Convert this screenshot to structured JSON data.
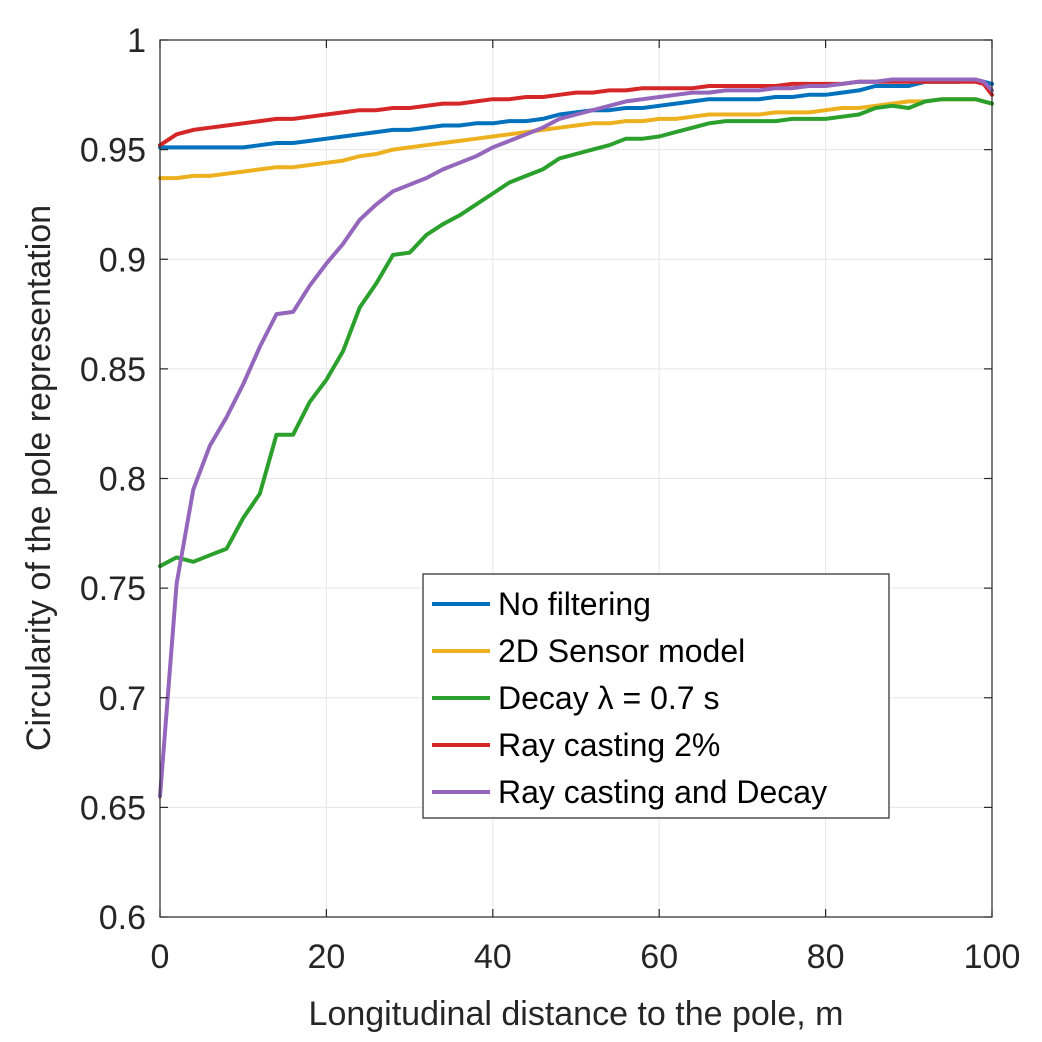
{
  "chart_data": {
    "type": "line",
    "title": "",
    "xlabel": "Longitudinal distance to the pole, m",
    "ylabel": "Circularity of the pole representation",
    "xlim": [
      0,
      100
    ],
    "ylim": [
      0.6,
      1
    ],
    "xticks": [
      0,
      20,
      40,
      60,
      80,
      100
    ],
    "xtick_labels": [
      "0",
      "20",
      "40",
      "60",
      "80",
      "100"
    ],
    "yticks": [
      0.6,
      0.65,
      0.7,
      0.75,
      0.8,
      0.85,
      0.9,
      0.95,
      1
    ],
    "ytick_labels": [
      "0.6",
      "0.65",
      "0.7",
      "0.75",
      "0.8",
      "0.85",
      "0.9",
      "0.95",
      "1"
    ],
    "grid": true,
    "legend_position": "lower-right",
    "x": [
      0,
      2,
      4,
      6,
      8,
      10,
      12,
      14,
      16,
      18,
      20,
      22,
      24,
      26,
      28,
      30,
      32,
      34,
      36,
      38,
      40,
      42,
      44,
      46,
      48,
      50,
      52,
      54,
      56,
      58,
      60,
      62,
      64,
      66,
      68,
      70,
      72,
      74,
      76,
      78,
      80,
      82,
      84,
      86,
      88,
      90,
      92,
      94,
      96,
      98,
      99,
      100
    ],
    "series": [
      {
        "name": "No filtering",
        "color": "#0072BD",
        "values": [
          0.951,
          0.951,
          0.951,
          0.951,
          0.951,
          0.951,
          0.952,
          0.953,
          0.953,
          0.954,
          0.955,
          0.956,
          0.957,
          0.958,
          0.959,
          0.959,
          0.96,
          0.961,
          0.961,
          0.962,
          0.962,
          0.963,
          0.963,
          0.964,
          0.966,
          0.967,
          0.968,
          0.968,
          0.969,
          0.969,
          0.97,
          0.971,
          0.972,
          0.973,
          0.973,
          0.973,
          0.973,
          0.974,
          0.974,
          0.975,
          0.975,
          0.976,
          0.977,
          0.979,
          0.979,
          0.979,
          0.981,
          0.981,
          0.981,
          0.982,
          0.981,
          0.98
        ]
      },
      {
        "name": "2D Sensor model",
        "color": "#EDB120",
        "values": [
          0.937,
          0.937,
          0.938,
          0.938,
          0.939,
          0.94,
          0.941,
          0.942,
          0.942,
          0.943,
          0.944,
          0.945,
          0.947,
          0.948,
          0.95,
          0.951,
          0.952,
          0.953,
          0.954,
          0.955,
          0.956,
          0.957,
          0.958,
          0.959,
          0.96,
          0.961,
          0.962,
          0.962,
          0.963,
          0.963,
          0.964,
          0.964,
          0.965,
          0.966,
          0.966,
          0.966,
          0.966,
          0.967,
          0.967,
          0.967,
          0.968,
          0.969,
          0.969,
          0.97,
          0.971,
          0.972,
          0.972,
          0.973,
          0.973,
          0.973,
          0.972,
          0.971
        ]
      },
      {
        "name": "Decay λ = 0.7 s",
        "color": "#2CA02C",
        "values": [
          0.76,
          0.764,
          0.762,
          0.765,
          0.768,
          0.782,
          0.793,
          0.82,
          0.82,
          0.835,
          0.845,
          0.858,
          0.878,
          0.889,
          0.902,
          0.903,
          0.911,
          0.916,
          0.92,
          0.925,
          0.93,
          0.935,
          0.938,
          0.941,
          0.946,
          0.948,
          0.95,
          0.952,
          0.955,
          0.955,
          0.956,
          0.958,
          0.96,
          0.962,
          0.963,
          0.963,
          0.963,
          0.963,
          0.964,
          0.964,
          0.964,
          0.965,
          0.966,
          0.969,
          0.97,
          0.969,
          0.972,
          0.973,
          0.973,
          0.973,
          0.972,
          0.971
        ]
      },
      {
        "name": "Ray casting 2%",
        "color": "#D62728",
        "values": [
          0.952,
          0.957,
          0.959,
          0.96,
          0.961,
          0.962,
          0.963,
          0.964,
          0.964,
          0.965,
          0.966,
          0.967,
          0.968,
          0.968,
          0.969,
          0.969,
          0.97,
          0.971,
          0.971,
          0.972,
          0.973,
          0.973,
          0.974,
          0.974,
          0.975,
          0.976,
          0.976,
          0.977,
          0.977,
          0.978,
          0.978,
          0.978,
          0.978,
          0.979,
          0.979,
          0.979,
          0.979,
          0.979,
          0.98,
          0.98,
          0.98,
          0.98,
          0.981,
          0.981,
          0.981,
          0.981,
          0.981,
          0.981,
          0.981,
          0.981,
          0.98,
          0.975
        ]
      },
      {
        "name": "Ray casting and Decay",
        "color": "#9467BD",
        "values": [
          0.655,
          0.752,
          0.795,
          0.815,
          0.828,
          0.843,
          0.86,
          0.875,
          0.876,
          0.888,
          0.898,
          0.907,
          0.918,
          0.925,
          0.931,
          0.934,
          0.937,
          0.941,
          0.944,
          0.947,
          0.951,
          0.954,
          0.957,
          0.96,
          0.964,
          0.966,
          0.968,
          0.97,
          0.972,
          0.973,
          0.974,
          0.975,
          0.976,
          0.976,
          0.977,
          0.977,
          0.977,
          0.978,
          0.978,
          0.979,
          0.979,
          0.98,
          0.981,
          0.981,
          0.982,
          0.982,
          0.982,
          0.982,
          0.982,
          0.982,
          0.981,
          0.977
        ]
      }
    ],
    "legend_entries": [
      {
        "label": "No filtering",
        "color": "#0072BD"
      },
      {
        "label": "2D Sensor model",
        "color": "#EDB120"
      },
      {
        "label": "Decay λ = 0.7 s",
        "color": "#2CA02C"
      },
      {
        "label": "Ray casting 2%",
        "color": "#D62728"
      },
      {
        "label": "Ray casting and Decay",
        "color": "#9467BD"
      }
    ]
  }
}
